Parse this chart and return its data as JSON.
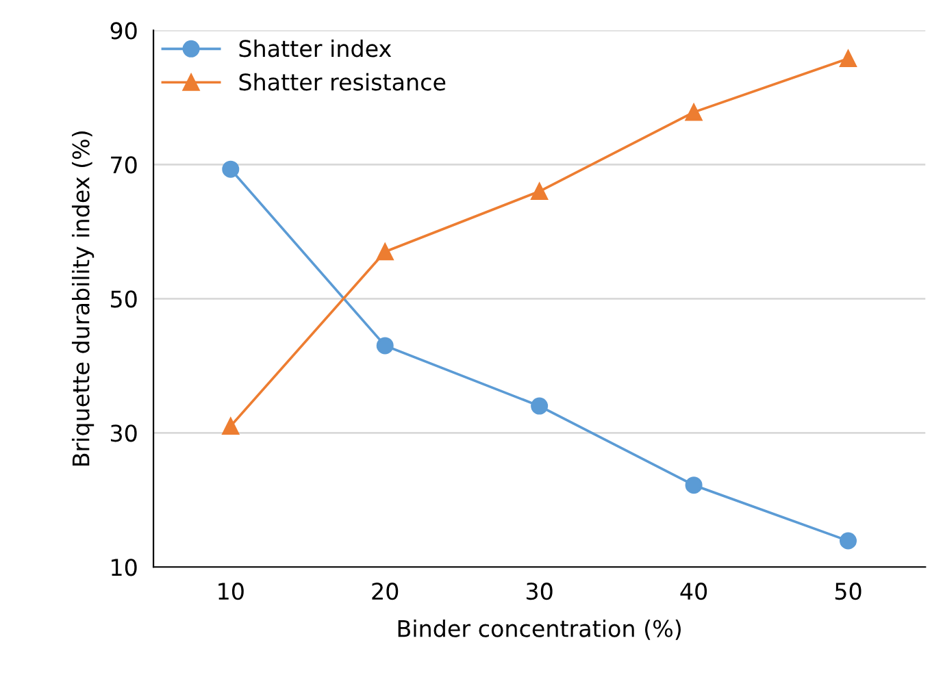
{
  "chart_data": {
    "type": "line",
    "xlabel": "Binder concentration (%)",
    "ylabel": "Briquette durability index (%)",
    "x": [
      10,
      20,
      30,
      40,
      50
    ],
    "series": [
      {
        "name": "Shatter index",
        "color": "#5b9bd5",
        "marker": "circle",
        "values": [
          69.3,
          43,
          34,
          22.2,
          13.9
        ]
      },
      {
        "name": "Shatter resistance",
        "color": "#ed7d31",
        "marker": "triangle",
        "values": [
          31,
          57,
          66,
          77.8,
          85.8
        ]
      }
    ],
    "xlim": [
      5,
      55
    ],
    "xticks": [
      10,
      20,
      30,
      40,
      50
    ],
    "ylim": [
      10,
      90
    ],
    "yticks": [
      10,
      30,
      50,
      70,
      90
    ],
    "grid": "y",
    "legend": "top left",
    "line_style": "solid"
  }
}
